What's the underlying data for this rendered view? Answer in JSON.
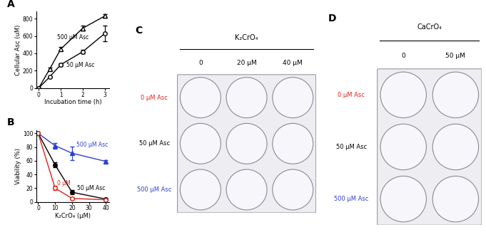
{
  "chart_data": [
    {
      "panel": "A",
      "type": "line",
      "x_label": "Incubation time (h)",
      "y_label": "Cellular Asc (uM)",
      "x": [
        0,
        0.5,
        1,
        2,
        3
      ],
      "xlim": [
        -0.1,
        3.2
      ],
      "xticks": [
        0,
        1,
        2,
        3
      ],
      "ylim": [
        0,
        880
      ],
      "yticks": [
        0,
        200,
        400,
        600,
        800
      ],
      "series": [
        {
          "name": "500 µM Asc",
          "color": "#000000",
          "marker": "open_triangle",
          "values": [
            0,
            220,
            450,
            690,
            830
          ],
          "errors": [
            0,
            15,
            20,
            25,
            20
          ]
        },
        {
          "name": "50 µM Asc",
          "color": "#000000",
          "marker": "open_circle",
          "values": [
            0,
            130,
            270,
            420,
            630
          ],
          "errors": [
            0,
            10,
            15,
            20,
            90
          ]
        }
      ]
    },
    {
      "panel": "B",
      "type": "line",
      "x_label": "K₂CrO₄ (µM)",
      "y_label": "Viability (%)",
      "x": [
        0,
        10,
        20,
        40
      ],
      "xlim": [
        -1,
        42
      ],
      "xticks": [
        0,
        10,
        20,
        30,
        40
      ],
      "ylim": [
        0,
        105
      ],
      "yticks": [
        0,
        20,
        40,
        60,
        80,
        100
      ],
      "series": [
        {
          "name": "500 µM Asc",
          "color": "#2d3fd1",
          "marker": "filled_triangle",
          "values": [
            100,
            82,
            71,
            59
          ],
          "errors": [
            0,
            4,
            10,
            2
          ]
        },
        {
          "name": "50 µM Asc",
          "color": "#000000",
          "marker": "filled_circle",
          "values": [
            100,
            54,
            14,
            4
          ],
          "errors": [
            0,
            4,
            3,
            1
          ]
        },
        {
          "name": "0 µM",
          "color": "#e0201b",
          "marker": "open_circle",
          "values": [
            100,
            20,
            5,
            3
          ],
          "errors": [
            0,
            3,
            1,
            1
          ]
        }
      ]
    }
  ],
  "plates": [
    {
      "panel": "C",
      "title": "K₂CrO₄",
      "columns": [
        "0",
        "20 µM",
        "40 µM"
      ],
      "rows": [
        "0 µM Asc",
        "50 µM Asc",
        "500 µM Asc"
      ],
      "row_colors": [
        "#e0201b",
        "#000000",
        "#2d3fd1"
      ]
    },
    {
      "panel": "D",
      "title": "CaCrO₄",
      "columns": [
        "0",
        "50 µM"
      ],
      "rows": [
        "0 µM Asc",
        "50 µM Asc",
        "500 µM Asc"
      ],
      "row_colors": [
        "#e0201b",
        "#000000",
        "#2d3fd1"
      ]
    }
  ]
}
